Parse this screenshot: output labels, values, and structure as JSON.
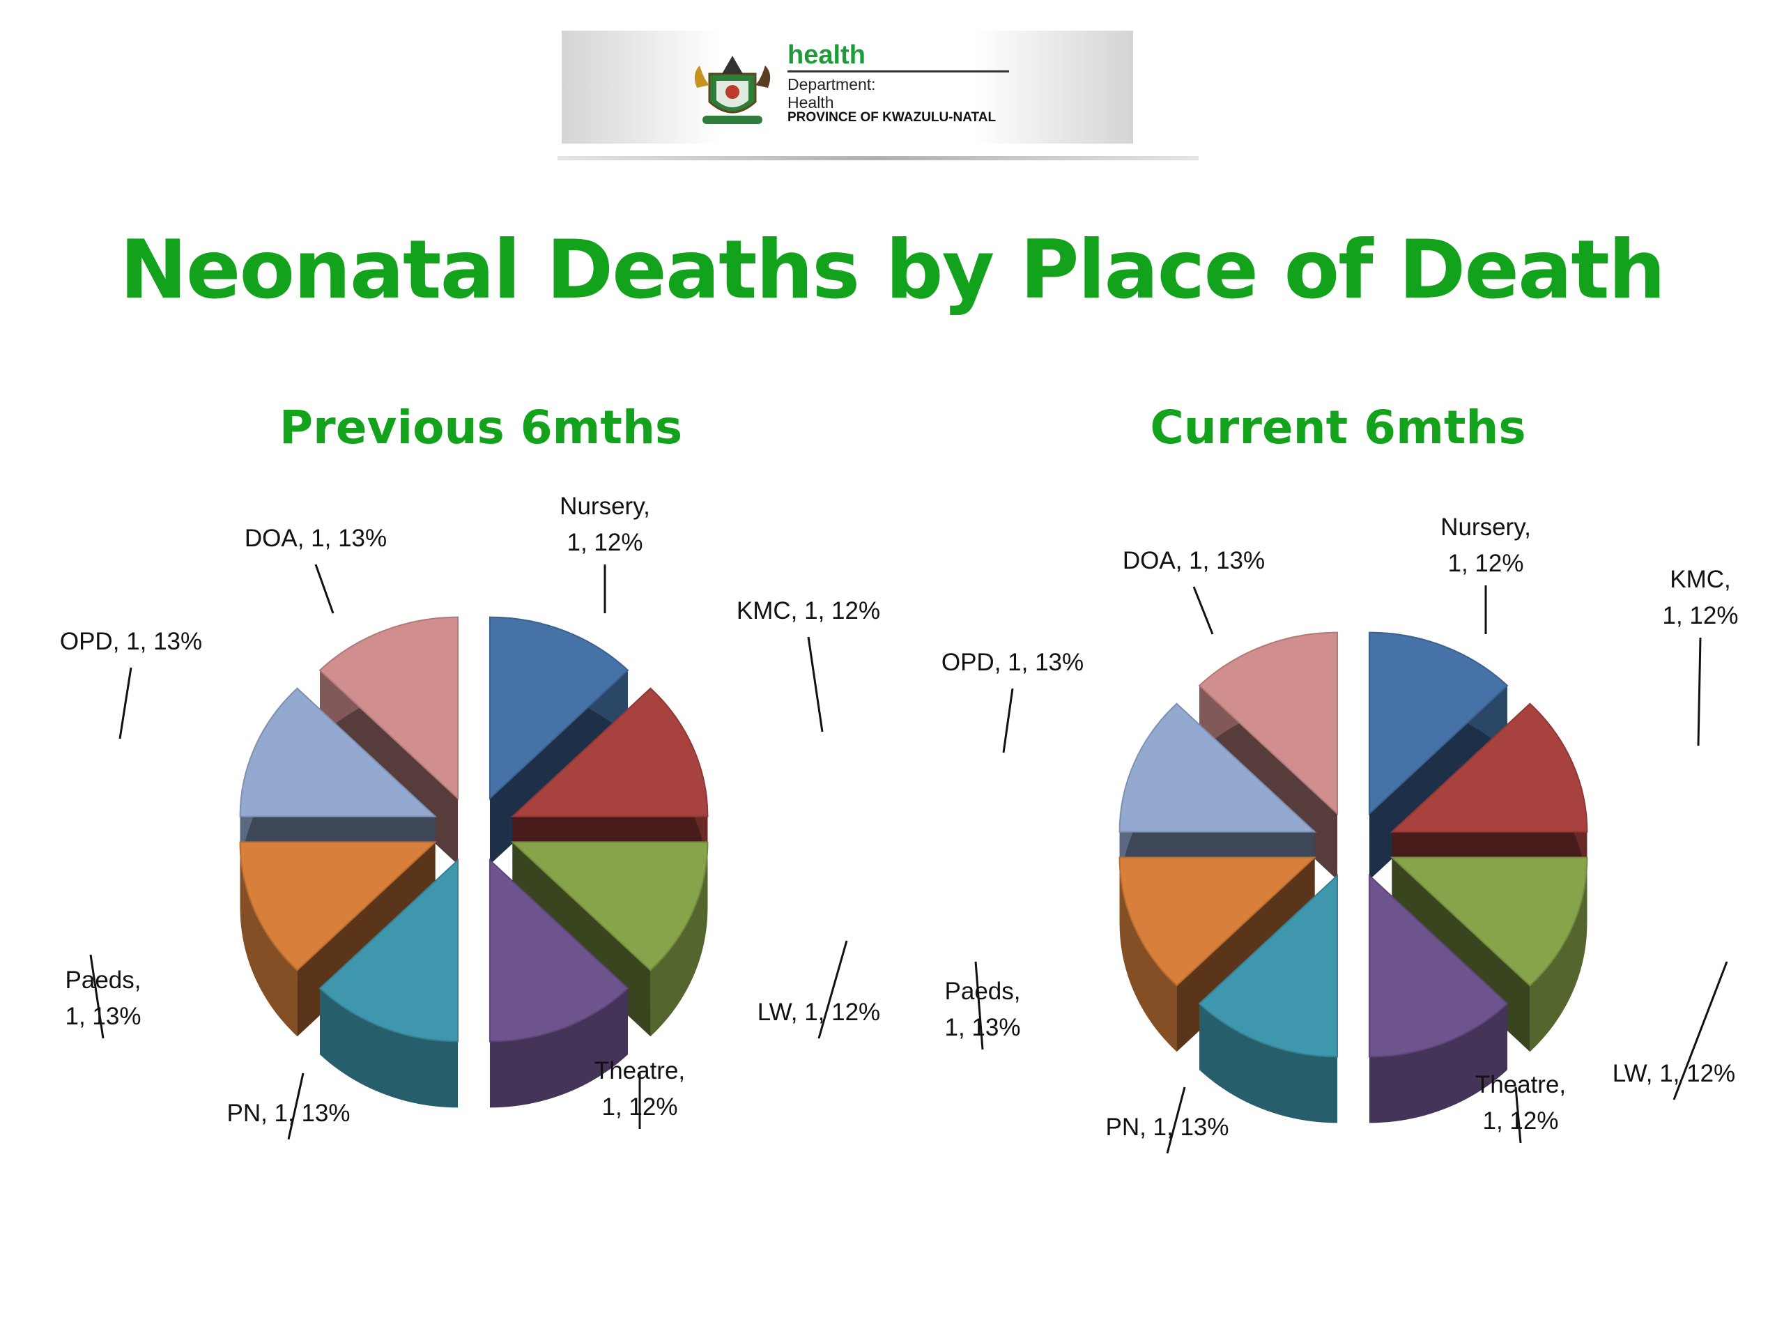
{
  "header": {
    "logo_health": "health",
    "logo_dept_line1": "Department:",
    "logo_dept_line2": "Health",
    "logo_province": "PROVINCE OF KWAZULU-NATAL"
  },
  "title": "Neonatal Deaths by Place of Death",
  "colors": {
    "title_green": "#13a21b",
    "slices": {
      "Nursery": "#4672a8",
      "KMC": "#a8423f",
      "LW": "#87a44a",
      "Theatre": "#6e548d",
      "PN": "#3f97ae",
      "Paeds": "#d77f3b",
      "OPD": "#93a9cf",
      "DOA": "#d08f8e"
    }
  },
  "chart_data": [
    {
      "type": "pie",
      "title": "Previous 6mths",
      "exploded": true,
      "style": "3d",
      "categories": [
        "Nursery",
        "KMC",
        "LW",
        "Theatre",
        "PN",
        "Paeds",
        "OPD",
        "DOA"
      ],
      "values": [
        1,
        1,
        1,
        1,
        1,
        1,
        1,
        1
      ],
      "data_labels": [
        [
          "Nursery,",
          "1, 12%"
        ],
        [
          "KMC, 1, 12%"
        ],
        [
          "LW, 1, 12%"
        ],
        [
          "Theatre,",
          "1, 12%"
        ],
        [
          "PN, 1, 13%"
        ],
        [
          "Paeds,",
          "1, 13%"
        ],
        [
          "OPD, 1, 13%"
        ],
        [
          "DOA, 1, 13%"
        ]
      ]
    },
    {
      "type": "pie",
      "title": "Current 6mths",
      "exploded": true,
      "style": "3d",
      "categories": [
        "Nursery",
        "KMC",
        "LW",
        "Theatre",
        "PN",
        "Paeds",
        "OPD",
        "DOA"
      ],
      "values": [
        1,
        1,
        1,
        1,
        1,
        1,
        1,
        1
      ],
      "data_labels": [
        [
          "Nursery,",
          "1, 12%"
        ],
        [
          "KMC,",
          "1, 12%"
        ],
        [
          "LW, 1, 12%"
        ],
        [
          "Theatre,",
          "1, 12%"
        ],
        [
          "PN, 1, 13%"
        ],
        [
          "Paeds,",
          "1, 13%"
        ],
        [
          "OPD, 1, 13%"
        ],
        [
          "DOA, 1, 13%"
        ]
      ]
    }
  ]
}
